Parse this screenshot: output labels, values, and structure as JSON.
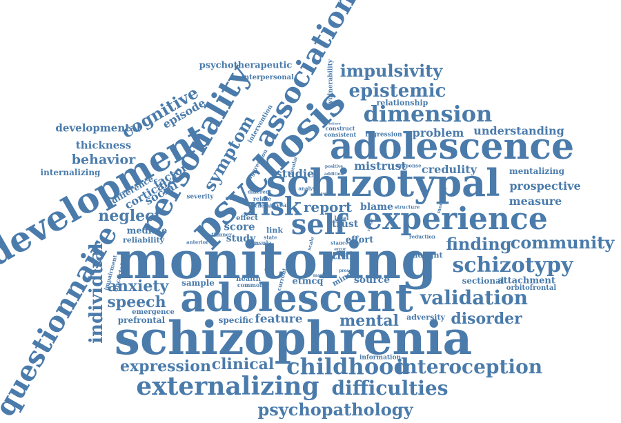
{
  "colors": {
    "word": "#4a7bab",
    "background": "#ffffff"
  },
  "words": [
    "monitoring",
    "schizophrenia",
    "adolescent",
    "adolescence",
    "schizotypal",
    "experience",
    "psychosis",
    "development",
    "personality",
    "association",
    "questionnaire",
    "externalizing",
    "childhood",
    "interoception",
    "validation",
    "self",
    "risk",
    "schizotypy",
    "community",
    "finding",
    "dimension",
    "epistemic",
    "impulsivity",
    "difficulties",
    "psychopathology",
    "expression",
    "clinical",
    "mental",
    "disorder",
    "anxiety",
    "speech",
    "neglect",
    "individual",
    "symptom",
    "cognitive",
    "episode",
    "developmental",
    "thickness",
    "behavior",
    "internalizing",
    "cortical",
    "factor",
    "difference",
    "social",
    "psychotherapeutic",
    "interpersonal",
    "relationship",
    "understanding",
    "problem",
    "credulity",
    "mentalizing",
    "prospective",
    "measure",
    "report",
    "blame",
    "mistrust",
    "studies",
    "trust",
    "effort",
    "feature",
    "source",
    "sectional",
    "attachment",
    "orbitofrontal",
    "adversity",
    "prefrontal",
    "emergence",
    "specific",
    "sample",
    "mediate",
    "reliability",
    "score",
    "study",
    "etmcq",
    "trait",
    "mind",
    "thought",
    "vulnerability",
    "intervention",
    "aggression",
    "construct",
    "consistent",
    "regression",
    "information",
    "health",
    "common",
    "uncertainty",
    "impairment",
    "severity",
    "effect",
    "link",
    "insula",
    "state",
    "anterior",
    "thinner",
    "relate",
    "different",
    "female",
    "general",
    "year",
    "analyse",
    "positive",
    "response",
    "structure",
    "mediation",
    "reduction",
    "level",
    "error",
    "insular",
    "current",
    "cross",
    "scale",
    "marker",
    "higher",
    "present",
    "range",
    "stance",
    "model",
    "certainty",
    "addition",
    "target",
    "future"
  ]
}
